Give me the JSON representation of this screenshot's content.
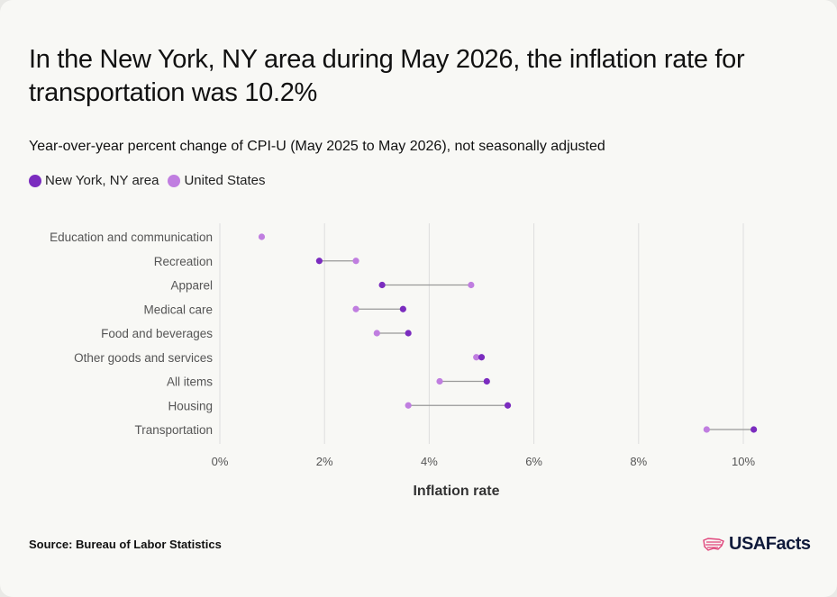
{
  "title": "In the New York, NY area during May 2026, the inflation rate for transportation was 10.2%",
  "subtitle": "Year-over-year percent change of CPI-U (May 2025 to May 2026), not seasonally adjusted",
  "source": "Source: Bureau of Labor Statistics",
  "logo": {
    "text": "USAFacts",
    "icon": "us-flag-map-icon"
  },
  "colors": {
    "ny": "#7b2cbf",
    "us": "#c07ee0",
    "connector": "#999999",
    "grid": "#dedede"
  },
  "chart_data": {
    "type": "scatter",
    "subtype": "dumbbell",
    "xlabel": "Inflation rate",
    "ylabel": "",
    "xlim": [
      0,
      11
    ],
    "x_ticks": [
      0,
      2,
      4,
      6,
      8,
      10
    ],
    "x_tick_labels": [
      "0%",
      "2%",
      "4%",
      "6%",
      "8%",
      "10%"
    ],
    "grid": true,
    "legend_position": "top-left",
    "categories": [
      "Education and communication",
      "Recreation",
      "Apparel",
      "Medical care",
      "Food and beverages",
      "Other goods and services",
      "All items",
      "Housing",
      "Transportation"
    ],
    "series": [
      {
        "name": "New York, NY area",
        "values": [
          null,
          1.9,
          3.1,
          3.5,
          3.6,
          5.0,
          5.1,
          5.5,
          10.2
        ]
      },
      {
        "name": "United States",
        "values": [
          0.8,
          2.6,
          4.8,
          2.6,
          3.0,
          4.9,
          4.2,
          3.6,
          9.3
        ]
      }
    ]
  }
}
